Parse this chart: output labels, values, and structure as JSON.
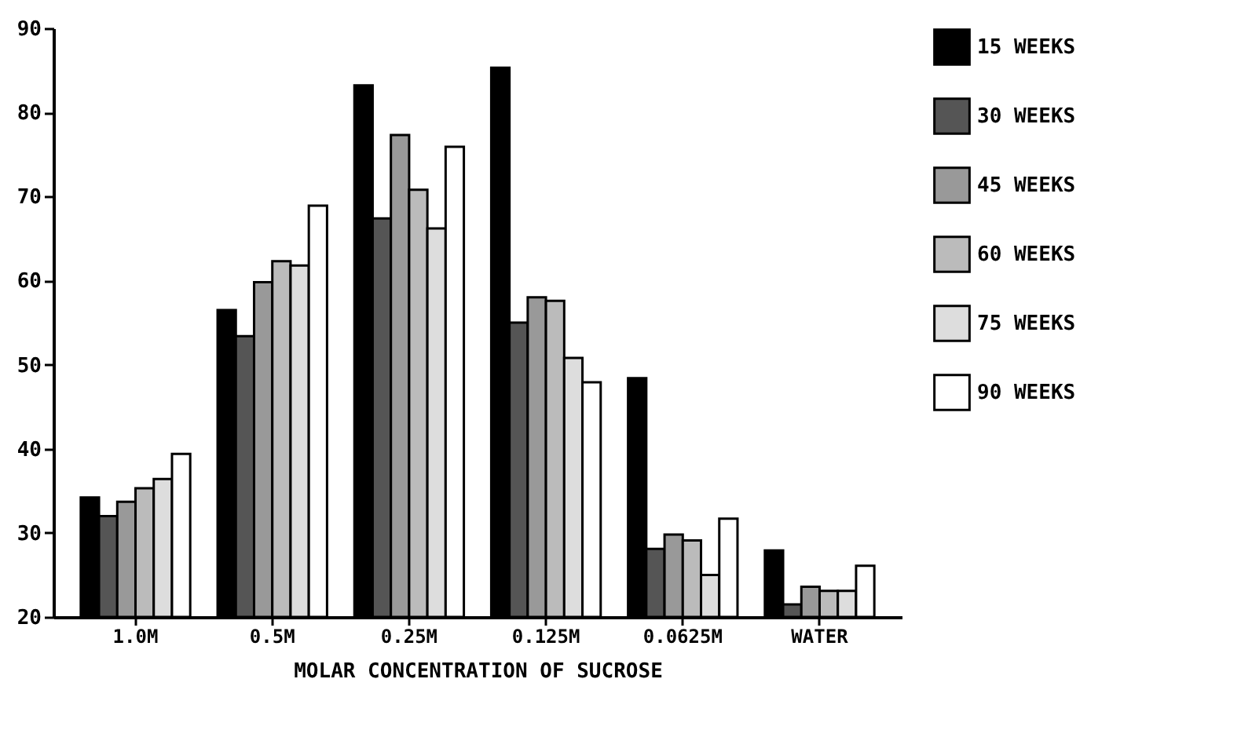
{
  "chart_data": {
    "type": "bar",
    "xlabel": "MOLAR CONCENTRATION OF SUCROSE",
    "categories": [
      "1.0M",
      "0.5M",
      "0.25M",
      "0.125M",
      "0.0625M",
      "WATER"
    ],
    "series": [
      {
        "name": "15 WEEKS",
        "color": "#000000",
        "values": [
          34.2,
          56.5,
          83.2,
          85.3,
          48.4,
          27.9
        ]
      },
      {
        "name": "30 WEEKS",
        "color": "#555555",
        "values": [
          32,
          53.4,
          67.4,
          55,
          28.1,
          21.5
        ]
      },
      {
        "name": "45 WEEKS",
        "color": "#999999",
        "values": [
          33.7,
          59.8,
          77.3,
          58,
          29.8,
          23.6
        ]
      },
      {
        "name": "60 WEEKS",
        "color": "#bbbbbb",
        "values": [
          35.3,
          62.3,
          70.8,
          57.6,
          29.1,
          23.1
        ]
      },
      {
        "name": "75 WEEKS",
        "color": "#dddddd",
        "values": [
          36.4,
          61.8,
          66.2,
          50.8,
          25,
          23.1
        ]
      },
      {
        "name": "90 WEEKS",
        "color": "#ffffff",
        "values": [
          39.4,
          68.9,
          75.9,
          47.9,
          31.7,
          26.1
        ]
      }
    ],
    "ylim": [
      20,
      90
    ],
    "yticks": [
      20,
      30,
      40,
      50,
      60,
      70,
      80,
      90
    ],
    "grid": false,
    "legend": "top right"
  }
}
